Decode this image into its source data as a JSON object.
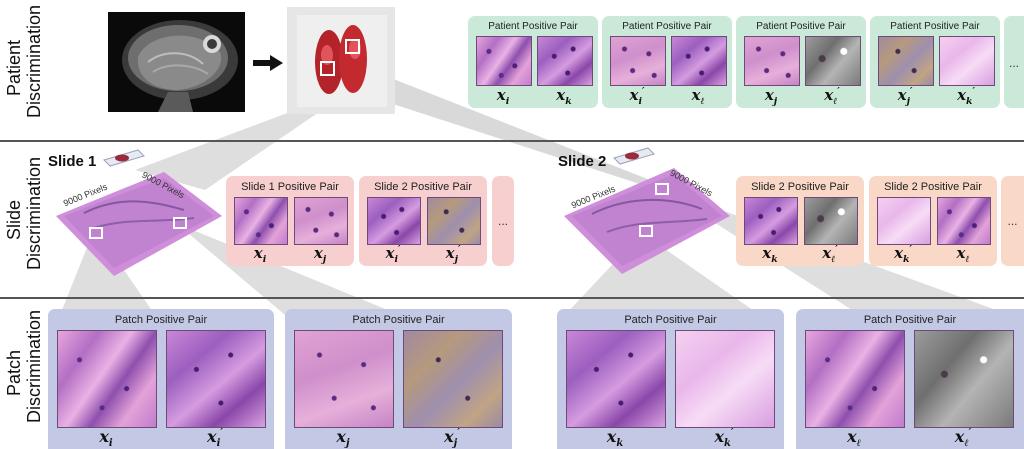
{
  "rows": {
    "patient_label_1": "Patient",
    "patient_label_2": "Discrimination",
    "slide_label_1": "Slide",
    "slide_label_2": "Discrimination",
    "patch_label_1": "Patch",
    "patch_label_2": "Discrimination"
  },
  "patient_pairs": [
    {
      "title": "Patient Positive Pair",
      "left_var": "x",
      "left_sub": "i",
      "left_prime": "",
      "right_var": "x",
      "right_sub": "k",
      "right_prime": ""
    },
    {
      "title": "Patient Positive Pair",
      "left_var": "x",
      "left_sub": "i",
      "left_prime": "′",
      "right_var": "x",
      "right_sub": "ℓ",
      "right_prime": ""
    },
    {
      "title": "Patient Positive Pair",
      "left_var": "x",
      "left_sub": "j",
      "left_prime": "",
      "right_var": "x",
      "right_sub": "ℓ",
      "right_prime": "′"
    },
    {
      "title": "Patient Positive Pair",
      "left_var": "x",
      "left_sub": "j",
      "left_prime": "′",
      "right_var": "x",
      "right_sub": "k",
      "right_prime": "′"
    }
  ],
  "ellipsis": "...",
  "slides": {
    "slide1_label": "Slide 1",
    "slide2_label": "Slide 2",
    "pixels_a": "9000 Pixels",
    "pixels_b": "9000 Pixels"
  },
  "slide_pairs": [
    {
      "title": "Slide 1 Positive Pair",
      "left_var": "x",
      "left_sub": "i",
      "left_prime": "",
      "right_var": "x",
      "right_sub": "j",
      "right_prime": ""
    },
    {
      "title": "Slide 2 Positive Pair",
      "left_var": "x",
      "left_sub": "i",
      "left_prime": "′",
      "right_var": "x",
      "right_sub": "j",
      "right_prime": "′"
    },
    {
      "title": "Slide 2 Positive Pair",
      "left_var": "x",
      "left_sub": "k",
      "left_prime": "",
      "right_var": "x",
      "right_sub": "ℓ",
      "right_prime": "′"
    },
    {
      "title": "Slide 2 Positive Pair",
      "left_var": "x",
      "left_sub": "k",
      "left_prime": "′",
      "right_var": "x",
      "right_sub": "ℓ",
      "right_prime": ""
    }
  ],
  "patch_pairs": [
    {
      "title": "Patch Positive Pair",
      "left_var": "x",
      "left_sub": "i",
      "left_prime": "",
      "right_var": "x",
      "right_sub": "i",
      "right_prime": "′"
    },
    {
      "title": "Patch Positive Pair",
      "left_var": "x",
      "left_sub": "j",
      "left_prime": "",
      "right_var": "x",
      "right_sub": "j",
      "right_prime": "′"
    },
    {
      "title": "Patch Positive Pair",
      "left_var": "x",
      "left_sub": "k",
      "left_prime": "",
      "right_var": "x",
      "right_sub": "k",
      "right_prime": "′"
    },
    {
      "title": "Patch Positive Pair",
      "left_var": "x",
      "left_sub": "ℓ",
      "left_prime": "",
      "right_var": "x",
      "right_sub": "ℓ",
      "right_prime": "′"
    }
  ],
  "colors": {
    "patient_card": "#cbe9d8",
    "slide1_card": "#f8cfcf",
    "slide2_card": "#f9d8c7",
    "patch_card": "#c3c8e4",
    "divider": "#555555"
  }
}
